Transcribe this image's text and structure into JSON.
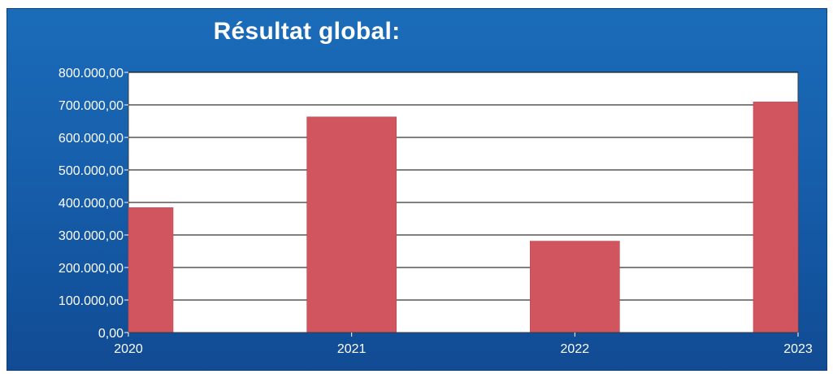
{
  "chart_data": {
    "type": "bar",
    "title": "Résultat global:",
    "categories": [
      "2020",
      "2021",
      "2022",
      "2023"
    ],
    "values": [
      384000,
      663000,
      281000,
      709000
    ],
    "ylim": [
      0,
      800000
    ],
    "yticks": [
      "0,00",
      "100.000,00",
      "200.000,00",
      "300.000,00",
      "400.000,00",
      "500.000,00",
      "600.000,00",
      "700.000,00",
      "800.000,00"
    ],
    "grid": true,
    "legend": "none",
    "colors": {
      "bar": "#d1555f",
      "background": "#1763ae",
      "plot_area": "#ffffff",
      "gridline": "#000000",
      "text": "#ffffff"
    }
  }
}
